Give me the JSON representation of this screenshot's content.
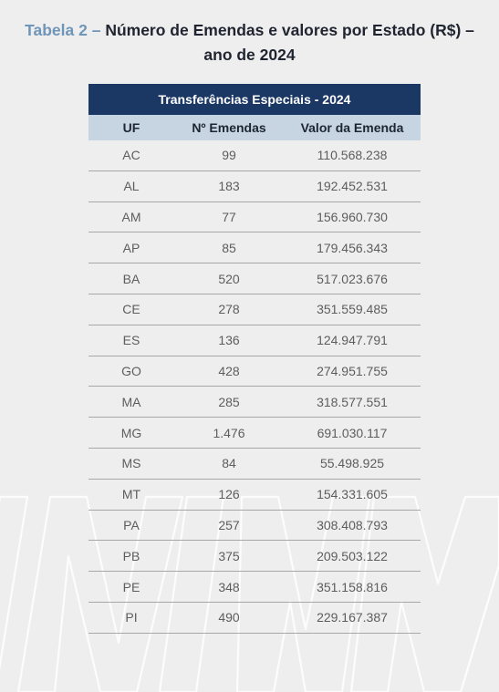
{
  "caption": {
    "lead": "Tabela 2 –",
    "text": " Número de Emendas e valores por Estado (R$) – ano de 2024"
  },
  "table": {
    "banner": "Transferências Especiais - 2024",
    "headers": [
      "UF",
      "Nº Emendas",
      "Valor da Emenda"
    ],
    "rows": [
      [
        "AC",
        "99",
        "110.568.238"
      ],
      [
        "AL",
        "183",
        "192.452.531"
      ],
      [
        "AM",
        "77",
        "156.960.730"
      ],
      [
        "AP",
        "85",
        "179.456.343"
      ],
      [
        "BA",
        "520",
        "517.023.676"
      ],
      [
        "CE",
        "278",
        "351.559.485"
      ],
      [
        "ES",
        "136",
        "124.947.791"
      ],
      [
        "GO",
        "428",
        "274.951.755"
      ],
      [
        "MA",
        "285",
        "318.577.551"
      ],
      [
        "MG",
        "1.476",
        "691.030.117"
      ],
      [
        "MS",
        "84",
        "55.498.925"
      ],
      [
        "MT",
        "126",
        "154.331.605"
      ],
      [
        "PA",
        "257",
        "308.408.793"
      ],
      [
        "PB",
        "375",
        "209.503.122"
      ],
      [
        "PE",
        "348",
        "351.158.816"
      ],
      [
        "PI",
        "490",
        "229.167.387"
      ]
    ]
  }
}
